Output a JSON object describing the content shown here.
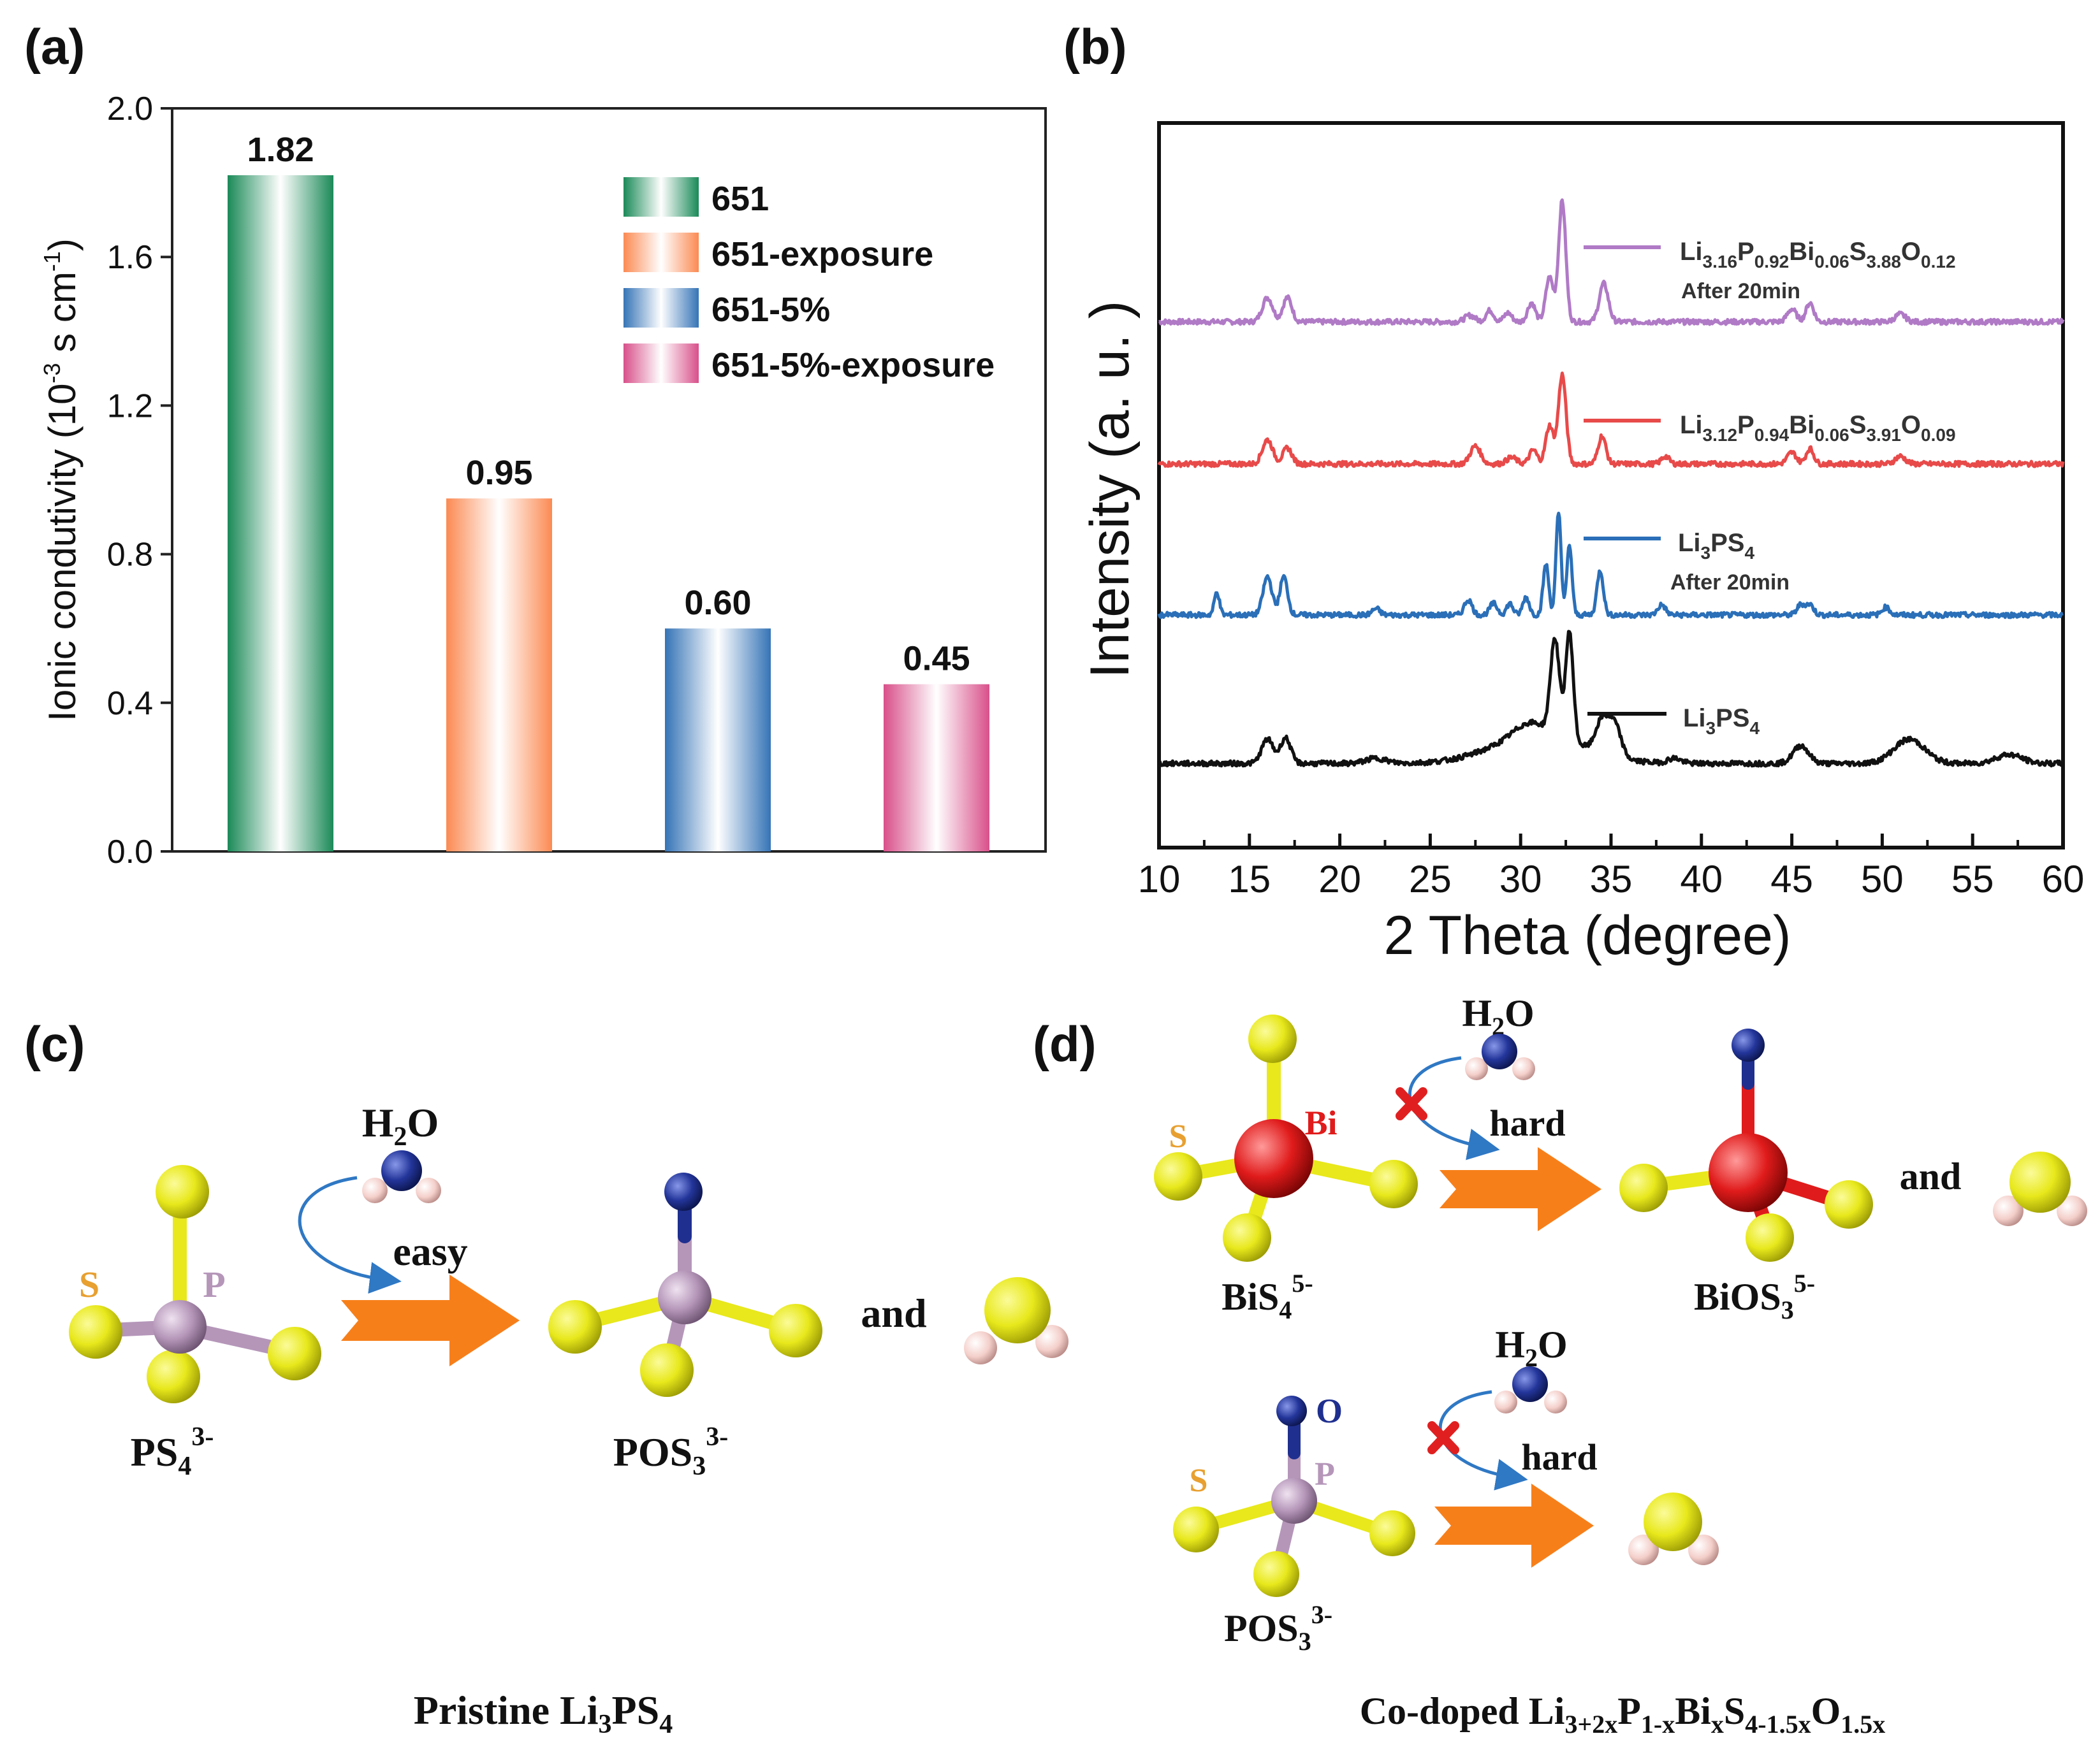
{
  "colors": {
    "green": "#1f8a5a",
    "orange": "#fb8c56",
    "blue": "#3a78b8",
    "pink": "#d9558d",
    "purple": "#b07ac6",
    "red": "#e84a4a",
    "xrd_blue": "#2a6fb8",
    "black": "#111111",
    "sulfur": "#e6e61a",
    "phosphorus": "#b596b9",
    "oxygen": "#1f2f8f",
    "hydrogen": "#f2c6c2",
    "bismuth": "#e01b1b",
    "arrow": "#f77f1a",
    "curve": "#2f78c4",
    "cross": "#e02020"
  },
  "chart_data": [
    {
      "panel": "(a)",
      "type": "bar",
      "categories": [
        "651",
        "651-exposure",
        "651-5%",
        "651-5%-exposure"
      ],
      "values": [
        1.82,
        0.95,
        0.6,
        0.45
      ],
      "value_labels": [
        "1.82",
        "0.95",
        "0.60",
        "0.45"
      ],
      "legend": [
        "651",
        "651-exposure",
        "651-5%",
        "651-5%-exposure"
      ],
      "legend_position": "top-right",
      "ylabel_main": "Ionic condutivity (10",
      "ylabel_exp1": "-3",
      "ylabel_mid": " s cm",
      "ylabel_exp2": "-1",
      "ylabel_end": ")",
      "ylim": [
        0,
        2.0
      ],
      "yticks": [
        "0.0",
        "0.4",
        "0.8",
        "1.2",
        "1.6",
        "2.0"
      ]
    },
    {
      "panel": "(b)",
      "type": "line",
      "xlabel": "2 Theta (degree)",
      "ylabel": "Intensity (a. u. )",
      "xlim": [
        10,
        60
      ],
      "xticks": [
        "10",
        "15",
        "20",
        "25",
        "30",
        "35",
        "40",
        "45",
        "50",
        "55",
        "60"
      ],
      "series": [
        {
          "name": "Li3.16P0.92Bi0.06S3.88O0.12 After 20min",
          "offset": 3,
          "main_peaks": [
            16,
            17,
            31.5,
            32.3,
            34.5,
            45,
            46
          ]
        },
        {
          "name": "Li3.12P0.94Bi0.06S3.91O0.09",
          "offset": 2,
          "main_peaks": [
            16,
            17,
            27.5,
            32.3,
            34.5,
            45.5
          ]
        },
        {
          "name": "Li3PS4 After 20min",
          "offset": 1,
          "main_peaks": [
            13,
            16,
            17,
            27,
            31.5,
            32,
            32.5,
            34.5
          ]
        },
        {
          "name": "Li3PS4",
          "offset": 0,
          "main_peaks": [
            16,
            17,
            32,
            32.7,
            35,
            45.5,
            51.5
          ]
        }
      ],
      "legend_labels": [
        {
          "base": "Li",
          "s1": "3.16",
          "b2": "P",
          "s2": "0.92",
          "b3": "Bi",
          "s3": "0.06",
          "b4": "S",
          "s4": "3.88",
          "b5": "O",
          "s5": "0.12",
          "note": "After 20min"
        },
        {
          "base": "Li",
          "s1": "3.12",
          "b2": "P",
          "s2": "0.94",
          "b3": "Bi",
          "s3": "0.06",
          "b4": "S",
          "s4": "3.91",
          "b5": "O",
          "s5": "0.09"
        },
        {
          "base": "Li",
          "s1": "3",
          "b2": "PS",
          "s2": "4",
          "note": "After 20min"
        },
        {
          "base": "Li",
          "s1": "3",
          "b2": "PS",
          "s2": "4"
        }
      ]
    }
  ],
  "panels": {
    "a": "(a)",
    "b": "(b)",
    "c": "(c)",
    "d": "(d)"
  },
  "diagram": {
    "h2o": {
      "h": "H",
      "sub": "2",
      "o": "O"
    },
    "easy": "easy",
    "hard": "hard",
    "and": "and",
    "atom_s": "S",
    "atom_p": "P",
    "atom_bi": "Bi",
    "atom_o": "O",
    "ps4": {
      "base": "PS",
      "sub": "4",
      "sup": "3-"
    },
    "pos3": {
      "base": "POS",
      "sub": "3",
      "sup": "3-"
    },
    "bis4": {
      "base": "BiS",
      "sub": "4",
      "sup": "5-"
    },
    "bios3": {
      "base": "BiOS",
      "sub": "3",
      "sup": "5-"
    },
    "pristine": {
      "pre": "Pristine Li",
      "s1": "3",
      "mid": "PS",
      "s2": "4"
    },
    "codoped": {
      "pre": "Co-doped Li",
      "s1": "3+2x",
      "b2": "P",
      "s2": "1-x",
      "b3": "Bi",
      "s3": "x",
      "b4": "S",
      "s4": "4-1.5x",
      "b5": "O",
      "s5": "1.5x"
    }
  }
}
